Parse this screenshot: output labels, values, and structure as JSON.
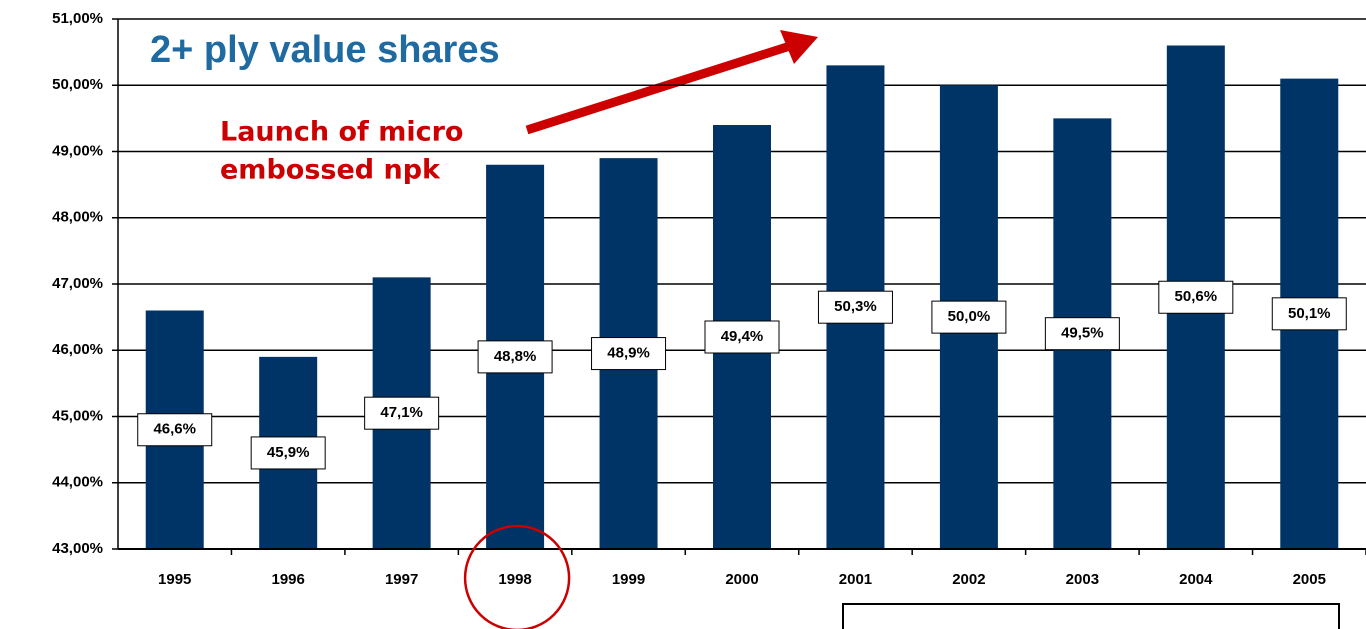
{
  "chart_data": {
    "type": "bar",
    "title": "2+ ply value shares",
    "annotations": [
      "Launch of micro",
      "embossed npk"
    ],
    "categories": [
      "1995",
      "1996",
      "1997",
      "1998",
      "1999",
      "2000",
      "2001",
      "2002",
      "2003",
      "2004",
      "2005"
    ],
    "values": [
      46.6,
      45.9,
      47.1,
      48.8,
      48.9,
      49.4,
      50.3,
      50.0,
      49.5,
      50.6,
      50.1
    ],
    "value_labels": [
      "46,6%",
      "45,9%",
      "47,1%",
      "48,8%",
      "48,9%",
      "49,4%",
      "50,3%",
      "50,0%",
      "49,5%",
      "50,6%",
      "50,1%"
    ],
    "color": "#003366",
    "ylim": [
      43,
      51
    ],
    "yticks": [
      {
        "value": 43,
        "label": "43,00%"
      },
      {
        "value": 44,
        "label": "44,00%"
      },
      {
        "value": 45,
        "label": "45,00%"
      },
      {
        "value": 46,
        "label": "46,00%"
      },
      {
        "value": 47,
        "label": "47,00%"
      },
      {
        "value": 48,
        "label": "48,00%"
      },
      {
        "value": 49,
        "label": "49,00%"
      },
      {
        "value": 50,
        "label": "50,00%"
      },
      {
        "value": 51,
        "label": "51,00%"
      }
    ],
    "grid": true
  }
}
